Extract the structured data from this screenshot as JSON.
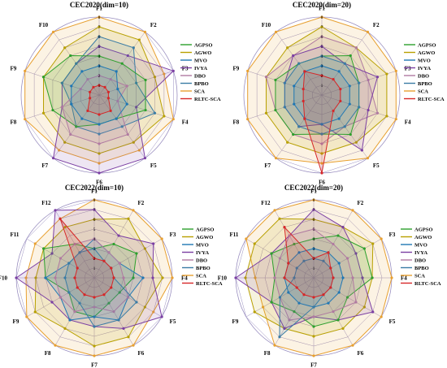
{
  "colors": {
    "AGPSO": "#2ca02c",
    "AGWO": "#b8a000",
    "MVO": "#1f77b4",
    "IVYA": "#7b3fa3",
    "DBO": "#b07aa1",
    "BPBO": "#3a7ca5",
    "SCA": "#e8a030",
    "RLTC-SCA": "#d62728",
    "grid": "#9a8fc0"
  },
  "chart_data": [
    {
      "type": "radar",
      "title": "CEC2020(dim=10)",
      "axes": [
        "F1",
        "F2",
        "F3",
        "F4",
        "F5",
        "F6",
        "F7",
        "F8",
        "F9",
        "F10"
      ],
      "rmax": 8,
      "ticks": [
        "1",
        "2",
        "3",
        "4",
        "5",
        "6",
        "7",
        "8"
      ],
      "series": [
        {
          "name": "AGPSO",
          "values": [
            4,
            4,
            5,
            5,
            3,
            3,
            4,
            5,
            6,
            5
          ]
        },
        {
          "name": "AGWO",
          "values": [
            7,
            7,
            6,
            7,
            6,
            6,
            6,
            6,
            6,
            6
          ]
        },
        {
          "name": "MVO",
          "values": [
            3,
            3,
            2,
            3,
            3,
            3,
            3,
            3,
            3,
            3
          ]
        },
        {
          "name": "IVYA",
          "values": [
            5,
            5,
            8,
            4,
            8,
            8,
            8,
            4,
            4,
            4
          ]
        },
        {
          "name": "DBO",
          "values": [
            2,
            2,
            3,
            2,
            5,
            5,
            5,
            4,
            2,
            2
          ]
        },
        {
          "name": "BPBO",
          "values": [
            6,
            6,
            4,
            6,
            4,
            4,
            4,
            3,
            4,
            4
          ]
        },
        {
          "name": "SCA",
          "values": [
            8,
            8,
            7,
            8,
            7,
            7,
            7,
            8,
            8,
            8
          ]
        },
        {
          "name": "RLTC-SCA",
          "values": [
            1,
            1,
            1,
            1,
            2,
            2,
            2,
            1,
            1,
            1
          ]
        }
      ]
    },
    {
      "type": "radar",
      "title": "CEC2020(dim=20)",
      "axes": [
        "F1",
        "F2",
        "F3",
        "F4",
        "F5",
        "F6",
        "F7",
        "F8",
        "F9",
        "F10"
      ],
      "rmax": 8,
      "ticks": [
        "1",
        "2",
        "3",
        "4",
        "5",
        "6",
        "7",
        "8"
      ],
      "series": [
        {
          "name": "AGPSO",
          "values": [
            4,
            5,
            4,
            4,
            5,
            4,
            5,
            5,
            5,
            4
          ]
        },
        {
          "name": "AGWO",
          "values": [
            7,
            6,
            7,
            7,
            6,
            6,
            6,
            6,
            6,
            6
          ]
        },
        {
          "name": "MVO",
          "values": [
            3,
            3,
            3,
            3,
            3,
            3,
            3,
            3,
            3,
            3
          ]
        },
        {
          "name": "IVYA",
          "values": [
            5,
            4,
            6,
            5,
            7,
            3,
            4,
            4,
            4,
            5
          ]
        },
        {
          "name": "DBO",
          "values": [
            6,
            6,
            5,
            6,
            4,
            5,
            5,
            5,
            6,
            5
          ]
        },
        {
          "name": "BPBO",
          "values": [
            4,
            4,
            4,
            4,
            4,
            4,
            4,
            4,
            4,
            4
          ]
        },
        {
          "name": "SCA",
          "values": [
            8,
            8,
            8,
            8,
            8,
            7,
            8,
            8,
            8,
            8
          ]
        },
        {
          "name": "RLTC-SCA",
          "values": [
            2,
            2,
            2,
            2,
            2,
            8,
            3,
            2,
            2,
            3
          ]
        }
      ]
    },
    {
      "type": "radar",
      "title": "CEC2022(dim=10)",
      "axes": [
        "F1",
        "F2",
        "F3",
        "F4",
        "F5",
        "F6",
        "F7",
        "F8",
        "F9",
        "F10",
        "F11",
        "F12"
      ],
      "rmax": 8,
      "ticks": [
        "1",
        "2",
        "3",
        "4",
        "5",
        "6",
        "7",
        "8"
      ],
      "series": [
        {
          "name": "AGPSO",
          "values": [
            3,
            4,
            5,
            4,
            3,
            3,
            4,
            4,
            3,
            5,
            6,
            4
          ]
        },
        {
          "name": "AGWO",
          "values": [
            6,
            7,
            6,
            7,
            6,
            7,
            7,
            6,
            7,
            6,
            6,
            6
          ]
        },
        {
          "name": "MVO",
          "values": [
            4,
            3,
            3,
            5,
            4,
            5,
            4,
            5,
            4,
            5,
            3,
            3
          ]
        },
        {
          "name": "IVYA",
          "values": [
            7,
            5,
            7,
            6,
            8,
            6,
            5,
            5,
            5,
            8,
            5,
            8
          ]
        },
        {
          "name": "DBO",
          "values": [
            4,
            3,
            3,
            3,
            4,
            4,
            3,
            4,
            4,
            4,
            4,
            4
          ]
        },
        {
          "name": "BPBO",
          "values": [
            3,
            2,
            2,
            2,
            5,
            5,
            5,
            3,
            3,
            3,
            3,
            3
          ]
        },
        {
          "name": "SCA",
          "values": [
            8,
            8,
            8,
            8,
            7,
            8,
            8,
            8,
            8,
            7,
            7,
            7
          ]
        },
        {
          "name": "RLTC-SCA",
          "values": [
            2,
            2,
            2,
            2,
            2,
            2,
            2,
            2,
            2,
            2,
            2,
            7
          ]
        }
      ]
    },
    {
      "type": "radar",
      "title": "CEC2022(dim=20)",
      "axes": [
        "F1",
        "F2",
        "F3",
        "F4",
        "F5",
        "F6",
        "F7",
        "F8",
        "F9",
        "F10",
        "F11",
        "F12"
      ],
      "rmax": 8,
      "ticks": [
        "1",
        "2",
        "3",
        "4",
        "5",
        "6",
        "7",
        "8"
      ],
      "series": [
        {
          "name": "AGPSO",
          "values": [
            4,
            5,
            6,
            6,
            4,
            5,
            5,
            4,
            5,
            4,
            5,
            4
          ]
        },
        {
          "name": "AGWO",
          "values": [
            6,
            6,
            7,
            6,
            6,
            6,
            6,
            6,
            7,
            7,
            7,
            7
          ]
        },
        {
          "name": "MVO",
          "values": [
            3,
            3,
            3,
            3,
            3,
            3,
            3,
            3,
            3,
            3,
            3,
            3
          ]
        },
        {
          "name": "IVYA",
          "values": [
            7,
            6,
            5,
            5,
            7,
            5,
            4,
            6,
            5,
            8,
            5,
            5
          ]
        },
        {
          "name": "DBO",
          "values": [
            5,
            4,
            4,
            4,
            5,
            4,
            4,
            5,
            4,
            4,
            4,
            5
          ]
        },
        {
          "name": "BPBO",
          "values": [
            2,
            2,
            2,
            2,
            2,
            2,
            3,
            7,
            4,
            2,
            2,
            2
          ]
        },
        {
          "name": "SCA",
          "values": [
            8,
            8,
            8,
            8,
            8,
            8,
            8,
            8,
            6,
            6,
            8,
            8
          ]
        },
        {
          "name": "RLTC-SCA",
          "values": [
            2,
            3,
            2,
            2,
            2,
            2,
            2,
            2,
            2,
            3,
            3,
            6
          ]
        }
      ]
    }
  ]
}
